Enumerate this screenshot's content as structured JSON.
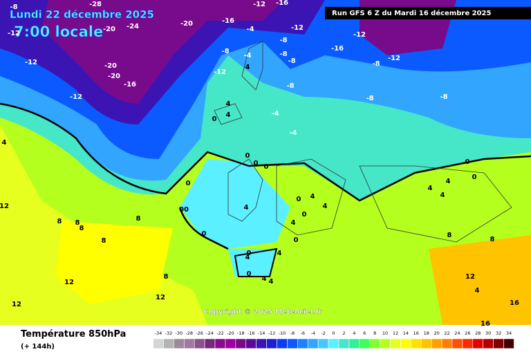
{
  "header": {
    "date": "Lundi 22 décembre 2025",
    "time": "7:00 locale",
    "run": "Run GFS 6 Z du Mardi 16 décembre 2025",
    "copyright": "Copyright © 2025 Meteociel.fr"
  },
  "footer": {
    "title": "Température 850hPa",
    "lead": "(+ 144h)"
  },
  "legend": {
    "values": [
      -34,
      -32,
      -30,
      -28,
      -26,
      -24,
      -22,
      -20,
      -18,
      -16,
      -14,
      -12,
      -10,
      -8,
      -6,
      -4,
      -2,
      0,
      2,
      4,
      6,
      8,
      10,
      12,
      14,
      16,
      18,
      20,
      22,
      24,
      26,
      28,
      30,
      32,
      34
    ],
    "colors": [
      "#d4d4d4",
      "#b4b4b4",
      "#9a8a9a",
      "#a078a0",
      "#8c508c",
      "#782878",
      "#8c0a8c",
      "#a000a0",
      "#780a8c",
      "#5a0a96",
      "#3c14b4",
      "#1e1ed2",
      "#0a3cf0",
      "#0a5aff",
      "#1e82ff",
      "#32a5ff",
      "#46c8ff",
      "#5af0ff",
      "#46e6c8",
      "#32f096",
      "#3cff5a",
      "#82ff32",
      "#b4ff1e",
      "#e6ff1e",
      "#ffff00",
      "#ffe100",
      "#ffc300",
      "#ffa000",
      "#ff7d00",
      "#ff5000",
      "#ff2800",
      "#e10000",
      "#b40000",
      "#820000",
      "#460000"
    ]
  },
  "map_labels": [
    "-8",
    "-28",
    "-12",
    "-20",
    "-24",
    "-20",
    "-16",
    "-12",
    "-16",
    "-20",
    "-12",
    "-20",
    "-16",
    "-12",
    "-8",
    "-4",
    "-8",
    "-12",
    "-8",
    "-8",
    "-16",
    "-12",
    "-8",
    "-12",
    "-4",
    "-4",
    "-8",
    "-12",
    "-8",
    "-8",
    "-4",
    "4",
    "4",
    "0",
    "4",
    "0",
    "0",
    "0",
    "00",
    "0",
    "0",
    "4",
    "0",
    "4",
    "4",
    "4",
    "0",
    "0",
    "4",
    "4",
    "4",
    "4",
    "0",
    "4",
    "0",
    "8",
    "8",
    "8",
    "8",
    "8",
    "8",
    "12",
    "12",
    "12",
    "12",
    "4",
    "8",
    "8",
    "4",
    "0",
    "4",
    "0",
    "4",
    "12",
    "16",
    "16"
  ]
}
